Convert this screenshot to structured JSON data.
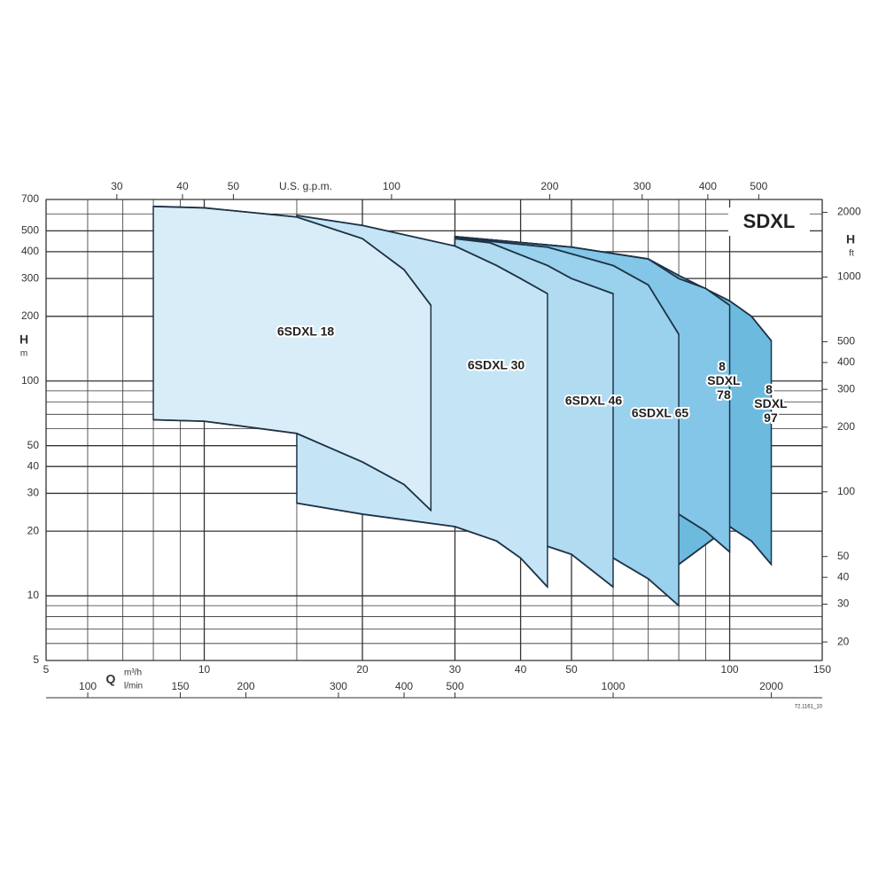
{
  "chart_data": {
    "type": "range-area",
    "title": "SDXL",
    "reference": "72.1161_10",
    "y_label": "H",
    "y_unit": "m",
    "y2_label": "H",
    "y2_unit": "ft",
    "x_label": "Q",
    "x_unit": "m³/h",
    "x3_unit": "l/min",
    "x2_label": "U.S. g.p.m.",
    "log_x": true,
    "log_y": true,
    "grid": true,
    "xlim": [
      5,
      150
    ],
    "xticks": [
      5,
      10,
      20,
      30,
      40,
      50,
      100,
      150
    ],
    "xminor": [
      6,
      7,
      8,
      9,
      15,
      60,
      70,
      80,
      90
    ],
    "ylim": [
      5,
      700
    ],
    "yticks": [
      5,
      10,
      20,
      30,
      40,
      50,
      100,
      200,
      300,
      400,
      500,
      700
    ],
    "yminor": [
      6,
      7,
      8,
      9,
      60,
      70,
      80,
      90,
      600
    ],
    "x2lim": [
      22.0,
      660.4
    ],
    "x2ticks": [
      30,
      40,
      50,
      100,
      200,
      300,
      400,
      500
    ],
    "x3lim": [
      83.3,
      2500
    ],
    "x3ticks": [
      100,
      150,
      200,
      300,
      400,
      500,
      1000,
      2000
    ],
    "y2lim": [
      16.4,
      2297
    ],
    "y2ticks": [
      20,
      30,
      40,
      50,
      100,
      200,
      300,
      400,
      500,
      1000,
      2000
    ],
    "series": [
      {
        "name": "6SDXL 18",
        "color": "#d9edf9",
        "x": [
          8,
          10,
          15,
          20,
          24,
          27
        ],
        "upper": [
          650,
          640,
          580,
          460,
          330,
          225
        ],
        "lower": [
          66,
          65,
          57,
          42,
          33,
          25
        ]
      },
      {
        "name": "6SDXL 30",
        "color": "#c5e5f6",
        "x": [
          15,
          20,
          30,
          36,
          40,
          45
        ],
        "upper": [
          590,
          530,
          425,
          345,
          300,
          255
        ],
        "lower": [
          27,
          24,
          21,
          18,
          15,
          11
        ]
      },
      {
        "name": "6SDXL 46",
        "color": "#b0dbf1",
        "x": [
          30,
          35,
          45,
          50,
          60
        ],
        "upper": [
          460,
          440,
          345,
          300,
          255
        ],
        "lower": [
          21,
          19,
          17,
          15.6,
          11
        ]
      },
      {
        "name": "6SDXL 65",
        "color": "#9ad1ed",
        "x": [
          30,
          45,
          60,
          70,
          80
        ],
        "upper": [
          465,
          420,
          345,
          280,
          165
        ],
        "lower": [
          21,
          17,
          15,
          12,
          9
        ]
      },
      {
        "name": "8 SDXL 78",
        "color": "#83c6e7",
        "x": [
          30,
          50,
          70,
          80,
          90,
          100
        ],
        "upper": [
          470,
          420,
          370,
          300,
          270,
          225
        ],
        "lower": [
          21,
          17,
          15,
          24,
          20,
          16
        ]
      },
      {
        "name": "8 SDXL 97",
        "color": "#6dbadf",
        "x": [
          30,
          50,
          70,
          80,
          100,
          110,
          120
        ],
        "upper": [
          470,
          420,
          370,
          310,
          236,
          200,
          154
        ],
        "lower": [
          21,
          17,
          15,
          14,
          21,
          18,
          14
        ]
      }
    ]
  }
}
